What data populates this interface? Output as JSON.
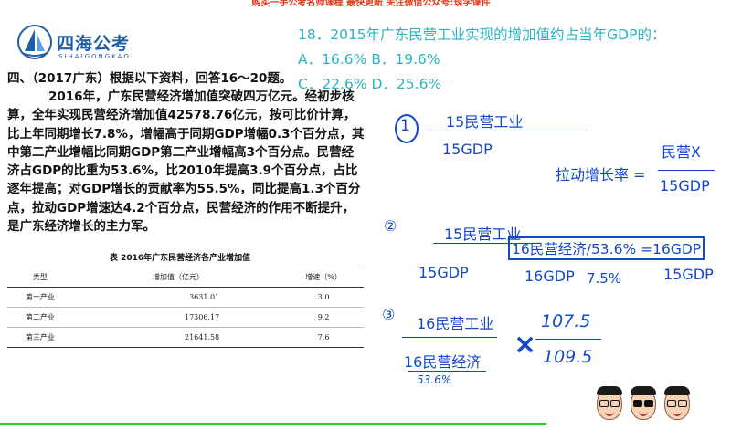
{
  "banner": {
    "text": "购买一手公考名师课程 最快更新 关注微信公众号:现学课件"
  },
  "logo": {
    "name": "四海公考",
    "sub": "SIHAIGONGKAO",
    "icon": "sail-logo-icon"
  },
  "material": {
    "section": "四、（2017广东）根据以下资料，回答16～20题。",
    "paragraph": "2016年，广东民营经济增加值突破四万亿元。经初步核算，全年实现民营经济增加值42578.76亿元，按可比价计算，比上年同期增长7.8%，增幅高于同期GDP增幅0.3个百分点，其中第二产业增幅比同期GDP第二产业增幅高3个百分点。民营经济占GDP的比重为53.6%，比2010年提高3.9个百分点，占比逐年提高；对GDP增长的贡献率为55.5%，同比提高1.3个百分点，拉动GDP增速达4.2个百分点，民营经济的作用不断提升，是广东经济增长的主力军。",
    "table": {
      "caption": "表    2016年广东民营经济各产业增加值",
      "headers": [
        "类型",
        "增加值（亿元）",
        "增速（%）"
      ],
      "rows": [
        [
          "第一产业",
          "3631.01",
          "3.0"
        ],
        [
          "第二产业",
          "17306.17",
          "9.2"
        ],
        [
          "第三产业",
          "21641.58",
          "7.6"
        ]
      ]
    }
  },
  "question": {
    "stem": "18．2015年广东民营工业实现的增加值约占当年GDP的：",
    "options_line1": "A．16.6% B．19.6%",
    "options_line2": "C．22.6% D．25.6%"
  },
  "notes": {
    "step1": {
      "marker": "1",
      "numerator": "15民营工业",
      "denominator": "15GDP",
      "formula_label": "拉动增长率 =",
      "formula_num": "民营X",
      "formula_den": "15GDP"
    },
    "step2": {
      "marker": "②",
      "numerator": "15民营工业",
      "boxed": "16民营经济/53.6% =16GDP",
      "den_left": "15GDP",
      "mid": "16GDP",
      "rate": "7.5%",
      "den_right": "15GDP"
    },
    "step3": {
      "marker": "③",
      "numerator": "16民营工业",
      "denominator": "16民营经济",
      "sub": "53.6%",
      "times": "×",
      "frac_num": "107.5",
      "frac_den": "109.5"
    }
  },
  "colors": {
    "handwriting": "#1548c9",
    "question": "#2ab3c3",
    "banner": "#e03a1e",
    "logo": "#1e5fa8",
    "progress": "#39c24a"
  },
  "avatars": [
    "teacher-avatar-1",
    "teacher-avatar-2",
    "teacher-avatar-3"
  ]
}
